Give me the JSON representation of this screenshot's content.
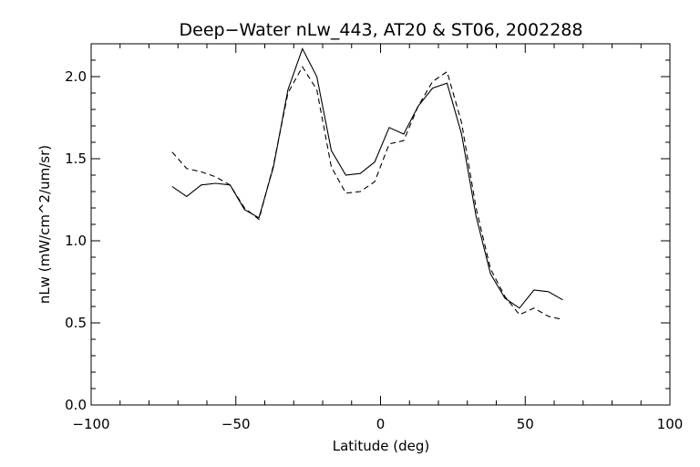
{
  "chart_data": {
    "type": "line",
    "title": "Deep−Water nLw_443, AT20 & ST06, 2002288",
    "xlabel": "Latitude (deg)",
    "ylabel": "nLw (mW/cm^2/um/sr)",
    "xlim": [
      -100,
      100
    ],
    "ylim": [
      0.0,
      2.2
    ],
    "x_ticks": [
      -100,
      -50,
      0,
      50,
      100
    ],
    "x_tick_labels": [
      "−100",
      "−50",
      "0",
      "50",
      "100"
    ],
    "y_ticks": [
      0.0,
      0.5,
      1.0,
      1.5,
      2.0
    ],
    "y_tick_labels": [
      "0.0",
      "0.5",
      "1.0",
      "1.5",
      "2.0"
    ],
    "grid": false,
    "series": [
      {
        "style": "solid",
        "x": [
          -72,
          -67,
          -62,
          -57,
          -52,
          -47,
          -42,
          -37,
          -32,
          -27,
          -22,
          -17,
          -12,
          -7,
          -2,
          3,
          8,
          13,
          18,
          23,
          28,
          33,
          38,
          43,
          48,
          53,
          58,
          63
        ],
        "y": [
          1.33,
          1.27,
          1.34,
          1.35,
          1.34,
          1.19,
          1.14,
          1.45,
          1.92,
          2.17,
          2.0,
          1.55,
          1.4,
          1.41,
          1.48,
          1.69,
          1.65,
          1.82,
          1.93,
          1.96,
          1.65,
          1.15,
          0.8,
          0.65,
          0.59,
          0.7,
          0.69,
          0.64
        ]
      },
      {
        "style": "dashed",
        "x": [
          -72,
          -67,
          -62,
          -57,
          -52,
          -47,
          -42,
          -37,
          -32,
          -27,
          -22,
          -17,
          -12,
          -7,
          -2,
          3,
          8,
          13,
          18,
          23,
          28,
          33,
          38,
          43,
          48,
          53,
          58,
          63
        ],
        "y": [
          1.54,
          1.44,
          1.42,
          1.39,
          1.34,
          1.2,
          1.13,
          1.46,
          1.9,
          2.06,
          1.92,
          1.45,
          1.29,
          1.3,
          1.36,
          1.59,
          1.61,
          1.82,
          1.97,
          2.03,
          1.72,
          1.2,
          0.83,
          0.66,
          0.55,
          0.59,
          0.54,
          0.52
        ]
      }
    ]
  }
}
